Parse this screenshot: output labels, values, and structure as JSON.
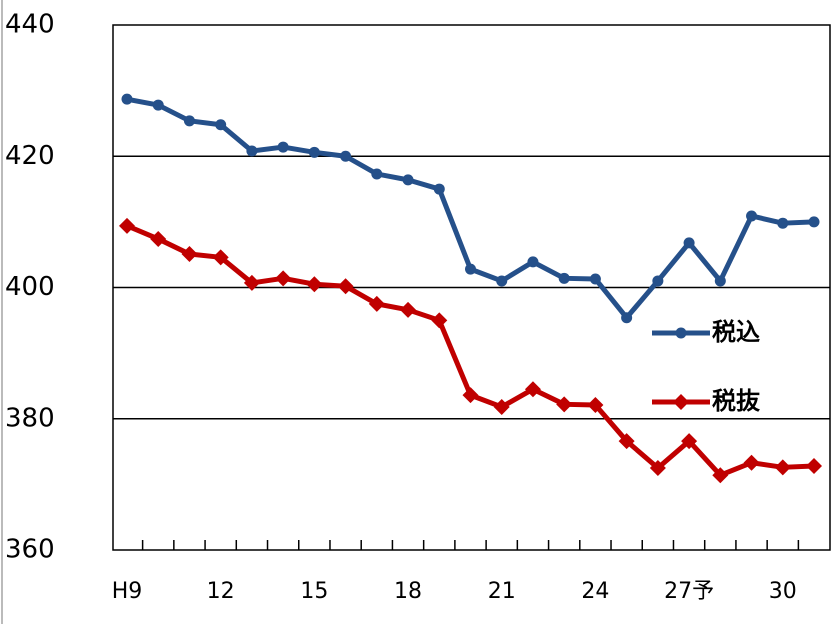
{
  "chart_data": {
    "type": "line",
    "categories": [
      "H9",
      null,
      null,
      "12",
      null,
      null,
      "15",
      null,
      null,
      "18",
      null,
      null,
      "21",
      null,
      null,
      "24",
      null,
      null,
      "27予",
      null,
      null,
      "30",
      null
    ],
    "series": [
      {
        "name": "税込",
        "color": "#25508a",
        "marker": "circle",
        "values": [
          428.7,
          427.8,
          425.4,
          424.8,
          420.8,
          421.4,
          420.6,
          420.0,
          417.3,
          416.4,
          415.0,
          402.8,
          401.0,
          403.9,
          401.4,
          401.3,
          395.4,
          401.0,
          406.8,
          401.0,
          410.9,
          409.8,
          410.0
        ]
      },
      {
        "name": "税抜",
        "color": "#c00000",
        "marker": "diamond",
        "values": [
          409.4,
          407.4,
          405.1,
          404.6,
          400.7,
          401.4,
          400.5,
          400.2,
          397.5,
          396.6,
          395.0,
          383.6,
          381.8,
          384.5,
          382.2,
          382.1,
          376.6,
          372.5,
          376.6,
          371.4,
          373.3,
          372.6,
          372.8
        ]
      }
    ],
    "ylim": [
      360,
      440
    ],
    "yticks": [
      360,
      380,
      400,
      420,
      440
    ],
    "grid": true,
    "legend": "right"
  }
}
